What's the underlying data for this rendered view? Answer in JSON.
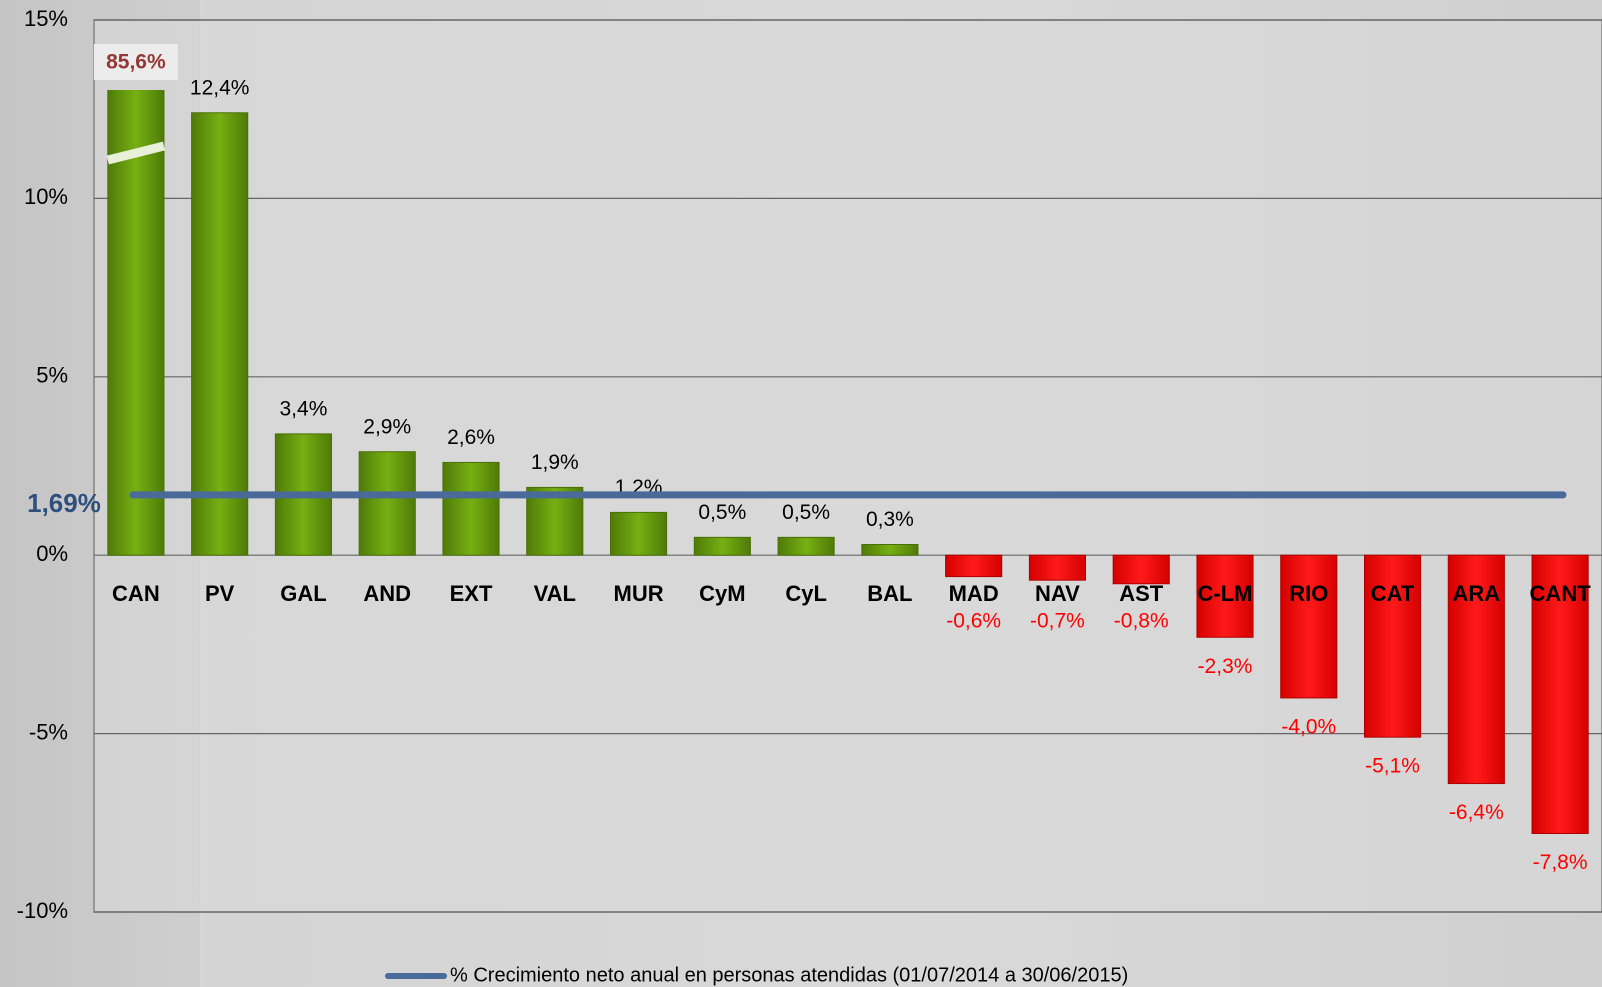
{
  "chart_data": {
    "type": "bar",
    "categories": [
      "CAN",
      "PV",
      "GAL",
      "AND",
      "EXT",
      "VAL",
      "MUR",
      "CyM",
      "CyL",
      "BAL",
      "MAD",
      "NAV",
      "AST",
      "C-LM",
      "RIO",
      "CAT",
      "ARA",
      "CANT"
    ],
    "values": [
      85.6,
      12.4,
      3.4,
      2.9,
      2.6,
      1.9,
      1.2,
      0.5,
      0.5,
      0.3,
      -0.6,
      -0.7,
      -0.8,
      -2.3,
      -4.0,
      -5.1,
      -6.4,
      -7.8
    ],
    "value_labels": [
      "85,6%",
      "12,4%",
      "3,4%",
      "2,9%",
      "2,6%",
      "1,9%",
      "1,2%",
      "0,5%",
      "0,5%",
      "0,3%",
      "-0,6%",
      "-0,7%",
      "-0,8%",
      "-2,3%",
      "-4,0%",
      "-5,1%",
      "-6,4%",
      "-7,8%"
    ],
    "positive_color": "#6aa00f",
    "negative_color": "#ff0000",
    "reference_line": {
      "name": "% Crecimiento neto anual en personas atendidas (01/07/2014 a 30/06/2015)",
      "value": 1.69,
      "label": "1,69%",
      "color": "#4a6a9a"
    },
    "ylim": [
      -10,
      15
    ],
    "yticks": [
      {
        "value": -10,
        "label": "-10%"
      },
      {
        "value": -5,
        "label": "-5%"
      },
      {
        "value": 0,
        "label": "0%"
      },
      {
        "value": 5,
        "label": "5%"
      },
      {
        "value": 10,
        "label": "10%"
      },
      {
        "value": 15,
        "label": "15%"
      }
    ],
    "grid": true
  }
}
